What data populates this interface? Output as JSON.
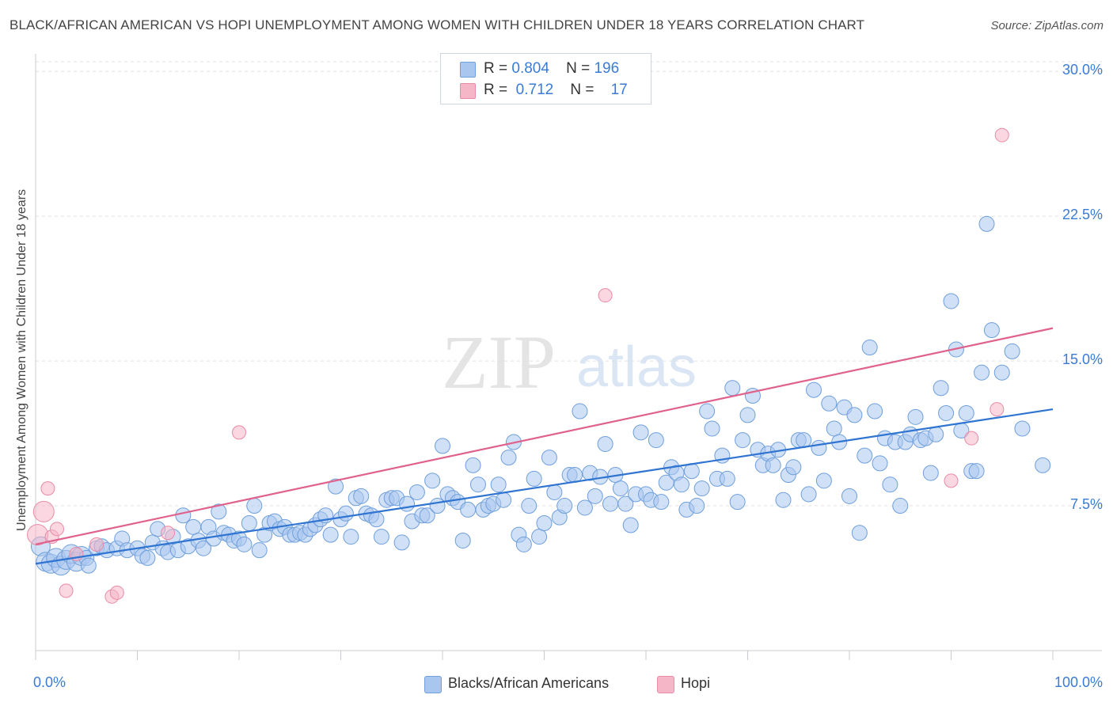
{
  "title": "BLACK/AFRICAN AMERICAN VS HOPI UNEMPLOYMENT AMONG WOMEN WITH CHILDREN UNDER 18 YEARS CORRELATION CHART",
  "source": "Source: ZipAtlas.com",
  "watermark": {
    "zip": "ZIP",
    "atlas": "atlas"
  },
  "legend": {
    "rows": [
      {
        "r_label": "R =",
        "r_value": "0.804",
        "n_label": "N =",
        "n_value": "196"
      },
      {
        "r_label": "R =",
        "r_value": "0.712",
        "n_label": "N =",
        "n_value": "17"
      }
    ]
  },
  "colors": {
    "blue_fill": "#a9c6ef",
    "blue_stroke": "#6f9fdc",
    "blue_line": "#2f74d0",
    "pink_fill": "#f5b6c8",
    "pink_stroke": "#e98aa6",
    "pink_line": "#e0628c",
    "tick_label": "#3a7bd5",
    "grid": "#dde1e6"
  },
  "chart_data": {
    "type": "scatter",
    "title": "BLACK/AFRICAN AMERICAN VS HOPI UNEMPLOYMENT AMONG WOMEN WITH CHILDREN UNDER 18 YEARS CORRELATION CHART",
    "xlabel": "",
    "ylabel": "Unemployment Among Women with Children Under 18 years",
    "xlim": [
      0,
      100
    ],
    "ylim": [
      0,
      30.5
    ],
    "x_tick_labels": [
      "0.0%",
      "100.0%"
    ],
    "y_tick_labels": [
      "7.5%",
      "15.0%",
      "22.5%",
      "30.0%"
    ],
    "y_ticks": [
      7.5,
      15.0,
      22.5,
      30.0
    ],
    "grid": "horizontal dashed",
    "legend_position": "bottom",
    "series": [
      {
        "name": "Blacks/African Americans",
        "r": 0.804,
        "n": 196,
        "trend": {
          "x": [
            0,
            100
          ],
          "y": [
            4.5,
            12.5
          ]
        },
        "points": [
          [
            0.5,
            5.4
          ],
          [
            1,
            4.6
          ],
          [
            1.5,
            4.5
          ],
          [
            2,
            4.8
          ],
          [
            2.5,
            4.4
          ],
          [
            3,
            4.7
          ],
          [
            3.5,
            5.0
          ],
          [
            4,
            4.6
          ],
          [
            4.5,
            4.9
          ],
          [
            5,
            4.8
          ],
          [
            5.2,
            4.4
          ],
          [
            6,
            5.3
          ],
          [
            6.5,
            5.4
          ],
          [
            7,
            5.2
          ],
          [
            8,
            5.3
          ],
          [
            8.5,
            5.8
          ],
          [
            9,
            5.2
          ],
          [
            10,
            5.3
          ],
          [
            10.5,
            4.9
          ],
          [
            11,
            4.8
          ],
          [
            11.5,
            5.6
          ],
          [
            12,
            6.3
          ],
          [
            12.5,
            5.3
          ],
          [
            13,
            5.1
          ],
          [
            13.5,
            5.9
          ],
          [
            14,
            5.2
          ],
          [
            14.5,
            7.0
          ],
          [
            15,
            5.4
          ],
          [
            15.5,
            6.4
          ],
          [
            16,
            5.7
          ],
          [
            16.5,
            5.3
          ],
          [
            17,
            6.4
          ],
          [
            17.5,
            5.8
          ],
          [
            18,
            7.2
          ],
          [
            18.5,
            6.1
          ],
          [
            19,
            6.0
          ],
          [
            19.5,
            5.7
          ],
          [
            20,
            5.8
          ],
          [
            20.5,
            5.5
          ],
          [
            21,
            6.6
          ],
          [
            21.5,
            7.5
          ],
          [
            22,
            5.2
          ],
          [
            22.5,
            6.0
          ],
          [
            23,
            6.6
          ],
          [
            23.5,
            6.7
          ],
          [
            24,
            6.3
          ],
          [
            24.5,
            6.4
          ],
          [
            25,
            6.0
          ],
          [
            25.5,
            6.0
          ],
          [
            26,
            6.1
          ],
          [
            26.5,
            6.0
          ],
          [
            27,
            6.3
          ],
          [
            27.5,
            6.5
          ],
          [
            28,
            6.8
          ],
          [
            28.5,
            7.0
          ],
          [
            29,
            6.0
          ],
          [
            29.5,
            8.5
          ],
          [
            30,
            6.8
          ],
          [
            30.5,
            7.1
          ],
          [
            31,
            5.9
          ],
          [
            31.5,
            7.9
          ],
          [
            32,
            8.0
          ],
          [
            32.5,
            7.1
          ],
          [
            33,
            7.0
          ],
          [
            33.5,
            6.8
          ],
          [
            34,
            5.9
          ],
          [
            34.5,
            7.8
          ],
          [
            35,
            7.9
          ],
          [
            35.5,
            7.9
          ],
          [
            36,
            5.6
          ],
          [
            36.5,
            7.6
          ],
          [
            37,
            6.7
          ],
          [
            37.5,
            8.2
          ],
          [
            38,
            7.0
          ],
          [
            38.5,
            7.0
          ],
          [
            39,
            8.8
          ],
          [
            39.5,
            7.5
          ],
          [
            40,
            10.6
          ],
          [
            40.5,
            8.1
          ],
          [
            41,
            7.9
          ],
          [
            41.5,
            7.7
          ],
          [
            42,
            5.7
          ],
          [
            42.5,
            7.3
          ],
          [
            43,
            9.6
          ],
          [
            43.5,
            8.6
          ],
          [
            44,
            7.3
          ],
          [
            44.5,
            7.5
          ],
          [
            45,
            7.6
          ],
          [
            45.5,
            8.6
          ],
          [
            46,
            7.8
          ],
          [
            46.5,
            10.0
          ],
          [
            47,
            10.8
          ],
          [
            47.5,
            6.0
          ],
          [
            48,
            5.5
          ],
          [
            48.5,
            7.5
          ],
          [
            49,
            8.9
          ],
          [
            49.5,
            5.9
          ],
          [
            50,
            6.6
          ],
          [
            50.5,
            10.0
          ],
          [
            51,
            8.2
          ],
          [
            51.5,
            6.9
          ],
          [
            52,
            7.5
          ],
          [
            52.5,
            9.1
          ],
          [
            53,
            9.1
          ],
          [
            53.5,
            12.4
          ],
          [
            54,
            7.4
          ],
          [
            54.5,
            9.2
          ],
          [
            55,
            8.0
          ],
          [
            55.5,
            9.0
          ],
          [
            56,
            10.7
          ],
          [
            56.5,
            7.6
          ],
          [
            57,
            9.1
          ],
          [
            57.5,
            8.4
          ],
          [
            58,
            7.6
          ],
          [
            58.5,
            6.5
          ],
          [
            59,
            8.1
          ],
          [
            59.5,
            11.3
          ],
          [
            60,
            8.1
          ],
          [
            60.5,
            7.8
          ],
          [
            61,
            10.9
          ],
          [
            61.5,
            7.7
          ],
          [
            62,
            8.7
          ],
          [
            62.5,
            9.5
          ],
          [
            63,
            9.2
          ],
          [
            63.5,
            8.6
          ],
          [
            64,
            7.3
          ],
          [
            64.5,
            9.3
          ],
          [
            65,
            7.5
          ],
          [
            65.5,
            8.4
          ],
          [
            66,
            12.4
          ],
          [
            66.5,
            11.5
          ],
          [
            67,
            8.9
          ],
          [
            67.5,
            10.1
          ],
          [
            68,
            8.9
          ],
          [
            68.5,
            13.6
          ],
          [
            69,
            7.7
          ],
          [
            69.5,
            10.9
          ],
          [
            70,
            12.2
          ],
          [
            70.5,
            13.2
          ],
          [
            71,
            10.4
          ],
          [
            71.5,
            9.6
          ],
          [
            72,
            10.2
          ],
          [
            72.5,
            9.6
          ],
          [
            73,
            10.4
          ],
          [
            73.5,
            7.8
          ],
          [
            74,
            9.1
          ],
          [
            74.5,
            9.5
          ],
          [
            75,
            10.9
          ],
          [
            75.5,
            10.9
          ],
          [
            76,
            8.1
          ],
          [
            76.5,
            13.5
          ],
          [
            77,
            10.5
          ],
          [
            77.5,
            8.8
          ],
          [
            78,
            12.8
          ],
          [
            78.5,
            11.5
          ],
          [
            79,
            10.8
          ],
          [
            79.5,
            12.6
          ],
          [
            80,
            8.0
          ],
          [
            80.5,
            12.2
          ],
          [
            81,
            6.1
          ],
          [
            81.5,
            10.1
          ],
          [
            82,
            15.7
          ],
          [
            82.5,
            12.4
          ],
          [
            83,
            9.7
          ],
          [
            83.5,
            11.0
          ],
          [
            84,
            8.6
          ],
          [
            84.5,
            10.8
          ],
          [
            85,
            7.5
          ],
          [
            85.5,
            10.8
          ],
          [
            86,
            11.2
          ],
          [
            86.5,
            12.1
          ],
          [
            87,
            10.9
          ],
          [
            87.5,
            11.0
          ],
          [
            88,
            9.2
          ],
          [
            88.5,
            11.2
          ],
          [
            89,
            13.6
          ],
          [
            89.5,
            12.3
          ],
          [
            90,
            18.1
          ],
          [
            90.5,
            15.6
          ],
          [
            91,
            11.4
          ],
          [
            91.5,
            12.3
          ],
          [
            92,
            9.3
          ],
          [
            92.5,
            9.3
          ],
          [
            93,
            14.4
          ],
          [
            93.5,
            22.1
          ],
          [
            94,
            16.6
          ],
          [
            95,
            14.4
          ],
          [
            96,
            15.5
          ],
          [
            97,
            11.5
          ],
          [
            99,
            9.6
          ]
        ]
      },
      {
        "name": "Hopi",
        "r": 0.712,
        "n": 17,
        "trend": {
          "x": [
            0,
            100
          ],
          "y": [
            5.5,
            16.7
          ]
        },
        "points": [
          [
            0.2,
            6.0
          ],
          [
            0.8,
            7.2
          ],
          [
            1.2,
            8.4
          ],
          [
            1.6,
            5.9
          ],
          [
            2.1,
            6.3
          ],
          [
            3,
            3.1
          ],
          [
            4,
            5.0
          ],
          [
            6,
            5.5
          ],
          [
            7.5,
            2.8
          ],
          [
            8,
            3.0
          ],
          [
            13,
            6.1
          ],
          [
            20,
            11.3
          ],
          [
            56,
            18.4
          ],
          [
            90,
            8.8
          ],
          [
            94.5,
            12.5
          ],
          [
            95,
            26.7
          ],
          [
            92,
            11.0
          ]
        ]
      }
    ]
  }
}
